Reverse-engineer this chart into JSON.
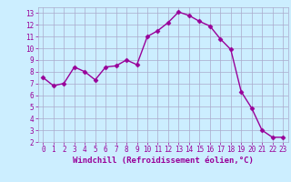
{
  "x": [
    0,
    1,
    2,
    3,
    4,
    5,
    6,
    7,
    8,
    9,
    10,
    11,
    12,
    13,
    14,
    15,
    16,
    17,
    18,
    19,
    20,
    21,
    22,
    23
  ],
  "y": [
    7.5,
    6.8,
    7.0,
    8.4,
    8.0,
    7.3,
    8.4,
    8.5,
    9.0,
    8.6,
    11.0,
    11.5,
    12.2,
    13.1,
    12.8,
    12.3,
    11.9,
    10.8,
    9.9,
    6.3,
    4.9,
    3.0,
    2.4,
    2.4
  ],
  "line_color": "#990099",
  "marker": "D",
  "markersize": 2.5,
  "linewidth": 1.0,
  "background_color": "#cceeff",
  "grid_color": "#aaaacc",
  "xlabel": "Windchill (Refroidissement éolien,°C)",
  "xlabel_color": "#990099",
  "xlim": [
    -0.5,
    23.5
  ],
  "ylim": [
    2,
    13.5
  ],
  "yticks": [
    2,
    3,
    4,
    5,
    6,
    7,
    8,
    9,
    10,
    11,
    12,
    13
  ],
  "xticks": [
    0,
    1,
    2,
    3,
    4,
    5,
    6,
    7,
    8,
    9,
    10,
    11,
    12,
    13,
    14,
    15,
    16,
    17,
    18,
    19,
    20,
    21,
    22,
    23
  ],
  "tick_color": "#990099",
  "tick_fontsize": 5.5,
  "xlabel_fontsize": 6.5
}
